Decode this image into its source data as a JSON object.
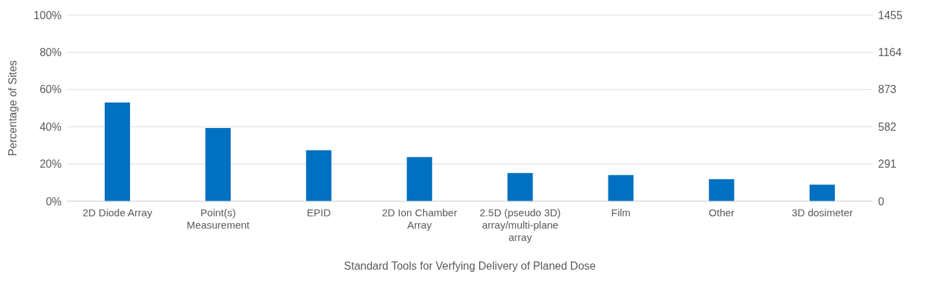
{
  "chart_data": {
    "type": "bar",
    "xlabel": "Standard Tools for Verfying Delivery of Planed Dose",
    "ylabel": "Percentage of Sites",
    "categories": [
      "2D Diode Array",
      "Point(s) Measurement",
      "EPID",
      "2D Ion Chamber Array",
      "2.5D (pseudo 3D) array/multi-plane array",
      "Film",
      "Other",
      "3D dosimeter"
    ],
    "series": [
      {
        "color": "#0070c0",
        "values": [
          53,
          39.3,
          27.4,
          23.7,
          15.2,
          14.1,
          11.9,
          8.9
        ]
      }
    ],
    "ylim": [
      0,
      100
    ],
    "yticks": [
      {
        "value": 0,
        "label": "0%"
      },
      {
        "value": 20,
        "label": "20%"
      },
      {
        "value": 40,
        "label": "40%"
      },
      {
        "value": 60,
        "label": "60%"
      },
      {
        "value": 80,
        "label": "80%"
      },
      {
        "value": 100,
        "label": "100%"
      }
    ],
    "y2lim": [
      0,
      1455
    ],
    "y2ticks": [
      0,
      291,
      582,
      873,
      1164,
      1455
    ],
    "grid": "y",
    "legend": false
  }
}
